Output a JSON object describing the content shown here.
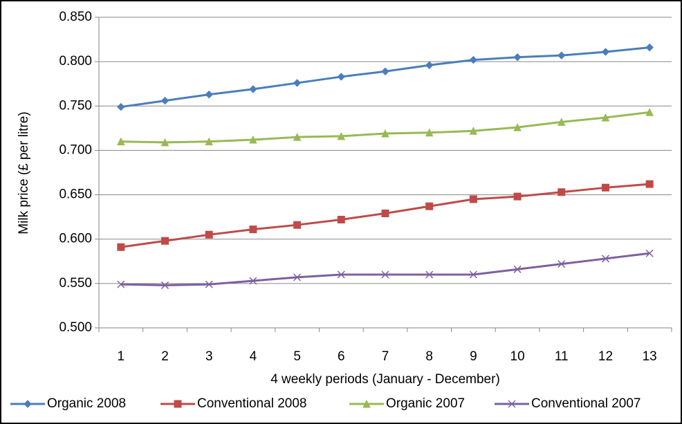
{
  "chart_data": {
    "type": "line",
    "x_label": "4 weekly periods (January - December)",
    "y_label": "Milk price (£ per litre)",
    "categories": [
      1,
      2,
      3,
      4,
      5,
      6,
      7,
      8,
      9,
      10,
      11,
      12,
      13
    ],
    "series": [
      {
        "name": "Organic 2008",
        "color": "#4a7ebb",
        "marker": "diamond",
        "values": [
          0.749,
          0.756,
          0.763,
          0.769,
          0.776,
          0.783,
          0.789,
          0.796,
          0.802,
          0.805,
          0.807,
          0.811,
          0.816
        ]
      },
      {
        "name": "Conventional 2008",
        "color": "#be4b48",
        "marker": "square",
        "values": [
          0.591,
          0.598,
          0.605,
          0.611,
          0.616,
          0.622,
          0.629,
          0.637,
          0.645,
          0.648,
          0.653,
          0.658,
          0.662
        ]
      },
      {
        "name": "Organic 2007",
        "color": "#98b954",
        "marker": "triangle",
        "values": [
          0.71,
          0.709,
          0.71,
          0.712,
          0.715,
          0.716,
          0.719,
          0.72,
          0.722,
          0.726,
          0.732,
          0.737,
          0.743
        ]
      },
      {
        "name": "Conventional 2007",
        "color": "#7d60a0",
        "marker": "x",
        "values": [
          0.549,
          0.548,
          0.549,
          0.553,
          0.557,
          0.56,
          0.56,
          0.56,
          0.56,
          0.566,
          0.572,
          0.578,
          0.584
        ]
      }
    ],
    "ylim": [
      0.5,
      0.85
    ],
    "yticks": [
      {
        "value": 0.5,
        "label": "0.500"
      },
      {
        "value": 0.55,
        "label": "0.550"
      },
      {
        "value": 0.6,
        "label": "0.600"
      },
      {
        "value": 0.65,
        "label": "0.650"
      },
      {
        "value": 0.7,
        "label": "0.700"
      },
      {
        "value": 0.75,
        "label": "0.750"
      },
      {
        "value": 0.8,
        "label": "0.800"
      },
      {
        "value": 0.85,
        "label": "0.850"
      }
    ],
    "grid": true,
    "legend": "bottom"
  }
}
